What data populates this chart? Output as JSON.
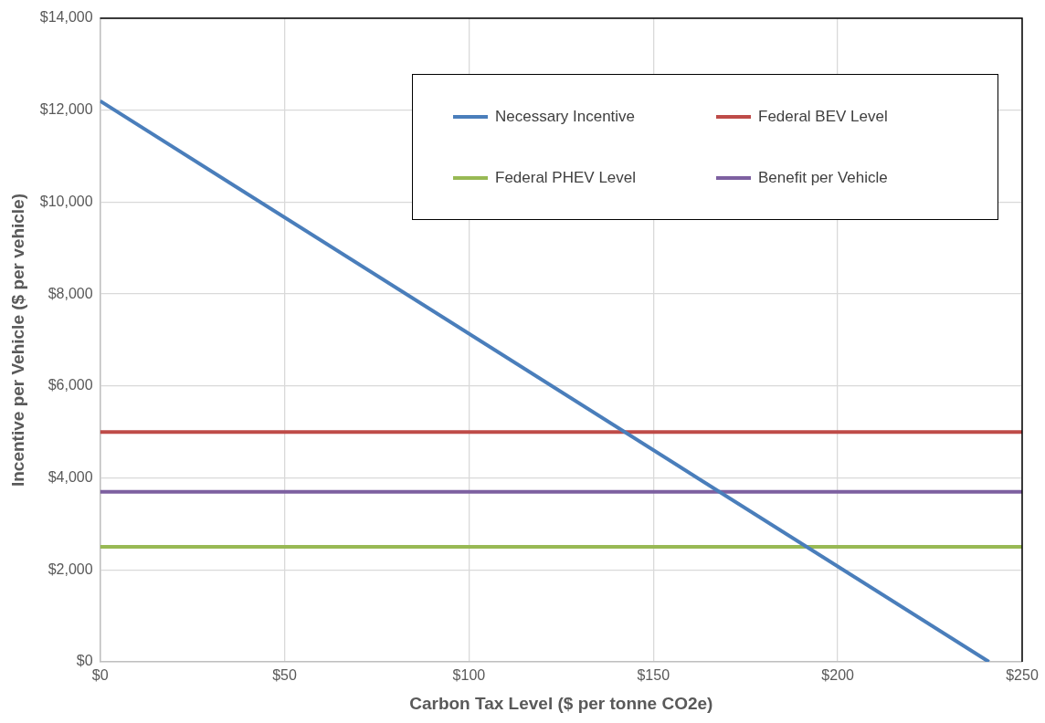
{
  "chart_data": {
    "type": "line",
    "xlabel": "Carbon Tax Level ($ per tonne CO2e)",
    "ylabel": "Incentive per Vehicle ($ per vehicle)",
    "xlim": [
      0,
      250
    ],
    "xticks": [
      {
        "value": 0,
        "label": "$0"
      },
      {
        "value": 50,
        "label": "$50"
      },
      {
        "value": 100,
        "label": "$100"
      },
      {
        "value": 150,
        "label": "$150"
      },
      {
        "value": 200,
        "label": "$200"
      },
      {
        "value": 250,
        "label": "$250"
      }
    ],
    "ylim": [
      0,
      14000
    ],
    "yticks": [
      {
        "value": 0,
        "label": "$0"
      },
      {
        "value": 2000,
        "label": "$2,000"
      },
      {
        "value": 4000,
        "label": "$4,000"
      },
      {
        "value": 6000,
        "label": "$6,000"
      },
      {
        "value": 8000,
        "label": "$8,000"
      },
      {
        "value": 10000,
        "label": "$10,000"
      },
      {
        "value": 12000,
        "label": "$12,000"
      },
      {
        "value": 14000,
        "label": "$14,000"
      }
    ],
    "grid": true,
    "legend": "top right",
    "marker": "none",
    "line_style": "solid",
    "series": [
      {
        "name": "Necessary Incentive",
        "color": "#4a7ebb",
        "x": [
          0,
          241
        ],
        "values": [
          12200,
          0
        ]
      },
      {
        "name": "Federal BEV Level",
        "color": "#be4b48",
        "x": [
          0,
          250
        ],
        "values": [
          5000,
          5000
        ]
      },
      {
        "name": "Federal PHEV Level",
        "color": "#98b954",
        "x": [
          0,
          250
        ],
        "values": [
          2500,
          2500
        ]
      },
      {
        "name": "Benefit per Vehicle",
        "color": "#7d60a0",
        "x": [
          0,
          250
        ],
        "values": [
          3700,
          3700
        ]
      }
    ]
  }
}
